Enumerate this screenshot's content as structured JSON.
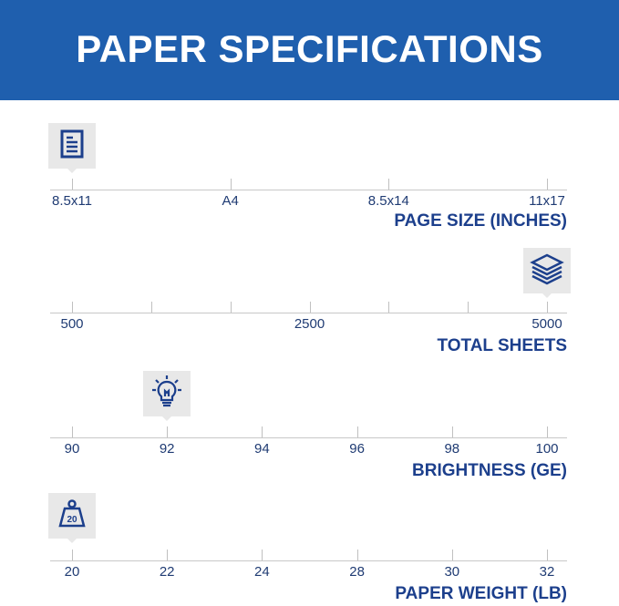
{
  "header": {
    "title": "PAPER SPECIFICATIONS"
  },
  "colors": {
    "header_bg": "#1f5fae",
    "title_text": "#1c3f8c",
    "label_text": "#1f3b73"
  },
  "scales": [
    {
      "title": "PAGE SIZE (INCHES)",
      "icon": "document-icon",
      "ticks": [
        "8.5x11",
        "A4",
        "8.5x14",
        "11x17"
      ],
      "labels": [
        "8.5x11",
        "A4",
        "8.5x14",
        "11x17"
      ],
      "selected": "8.5x11"
    },
    {
      "title": "TOTAL SHEETS",
      "icon": "paper-stack-icon",
      "ticks": [
        "500",
        "",
        "",
        "2500",
        "",
        "",
        "5000"
      ],
      "labels": [
        "500",
        "2500",
        "5000"
      ],
      "selected": "5000"
    },
    {
      "title": "BRIGHTNESS (GE)",
      "icon": "lightbulb-icon",
      "ticks": [
        "90",
        "92",
        "94",
        "96",
        "98",
        "100"
      ],
      "labels": [
        "90",
        "92",
        "94",
        "96",
        "98",
        "100"
      ],
      "selected": "92"
    },
    {
      "title": "PAPER WEIGHT (LB)",
      "icon": "weight-icon",
      "icon_text": "20",
      "ticks": [
        "20",
        "22",
        "24",
        "28",
        "30",
        "32"
      ],
      "labels": [
        "20",
        "22",
        "24",
        "28",
        "30",
        "32"
      ],
      "selected": "20"
    }
  ]
}
